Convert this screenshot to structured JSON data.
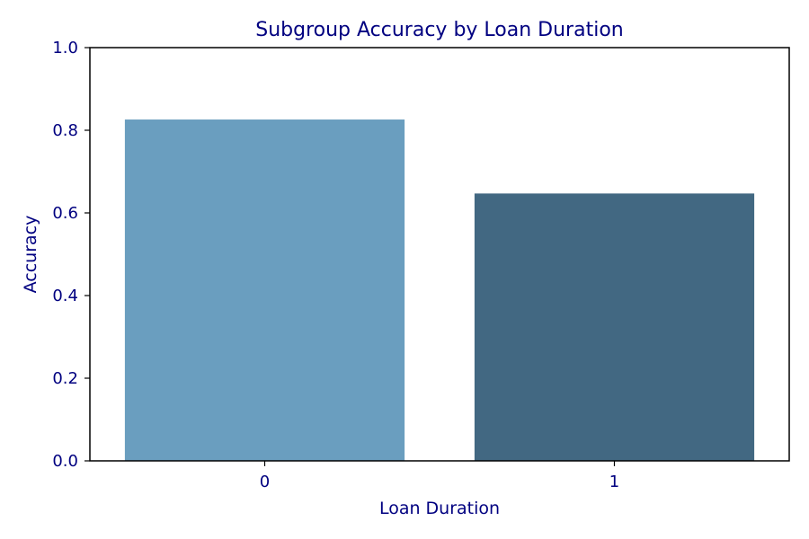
{
  "colors": {
    "text": "#000080",
    "axis": "#000000",
    "background": "#ffffff"
  },
  "chart_data": {
    "type": "bar",
    "title": "Subgroup Accuracy by Loan Duration",
    "xlabel": "Loan Duration",
    "ylabel": "Accuracy",
    "categories": [
      "0",
      "1"
    ],
    "values": [
      0.826,
      0.647
    ],
    "bar_colors": [
      "#6a9ebf",
      "#426882"
    ],
    "ylim": [
      0,
      1.0
    ],
    "yticks": [
      0.0,
      0.2,
      0.4,
      0.6,
      0.8,
      1.0
    ],
    "ytick_labels": [
      "0.0",
      "0.2",
      "0.4",
      "0.6",
      "0.8",
      "1.0"
    ],
    "grid": false,
    "legend": false
  }
}
